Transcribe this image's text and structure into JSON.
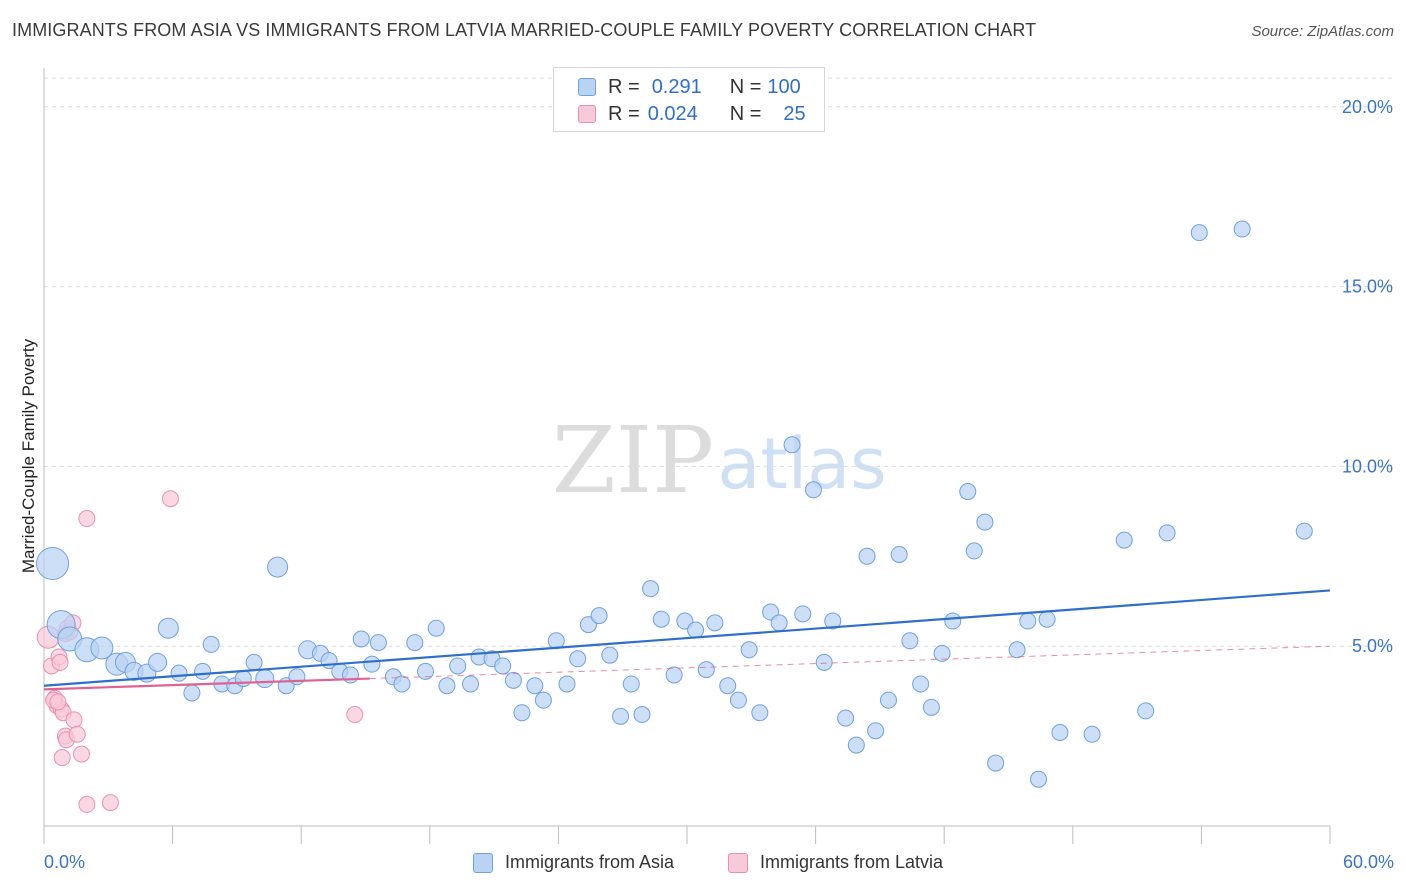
{
  "title": "IMMIGRANTS FROM ASIA VS IMMIGRANTS FROM LATVIA MARRIED-COUPLE FAMILY POVERTY CORRELATION CHART",
  "source": "Source: ZipAtlas.com",
  "watermark": {
    "zip": "ZIP",
    "atlas": "atlas"
  },
  "legend": {
    "rows": [
      {
        "r_label": "R =",
        "r_value": "0.291",
        "n_label": "N =",
        "n_value": "100"
      },
      {
        "r_label": "R =",
        "r_value": "0.024",
        "n_label": "N =",
        "n_value": "25"
      }
    ]
  },
  "x_axis": {
    "min_label": "0.0%",
    "max_label": "60.0%"
  },
  "colors": {
    "asia_fill": "#b9d3f3",
    "asia_stroke": "#6ea1e0",
    "asia_line": "#2f6fcc",
    "latvia_fill": "#f8c9d8",
    "latvia_stroke": "#ea8fb0",
    "latvia_line": "#e0628f",
    "tick_label": "#3a73c9",
    "grid": "#dcdcdc"
  },
  "chart_data": {
    "type": "scatter",
    "title": "IMMIGRANTS FROM ASIA VS IMMIGRANTS FROM LATVIA MARRIED-COUPLE FAMILY POVERTY CORRELATION CHART",
    "xlabel": "",
    "ylabel": "Married-Couple Family Poverty",
    "xlim": [
      0,
      60
    ],
    "ylim": [
      0,
      20.8
    ],
    "y_ticks": [
      5,
      10,
      15,
      20
    ],
    "y_tick_labels": [
      "5.0%",
      "10.0%",
      "15.0%",
      "20.0%"
    ],
    "x_tick_labels": [
      "0.0%",
      "60.0%"
    ],
    "grid": true,
    "legend_position": "top-center",
    "series": [
      {
        "name": "Immigrants from Asia",
        "r": 0.291,
        "n": 100,
        "trend": {
          "x0": 0,
          "y0": 3.9,
          "x1": 60,
          "y1": 6.55
        },
        "points": [
          [
            0.4,
            7.3,
            16
          ],
          [
            0.8,
            5.6,
            14
          ],
          [
            1.2,
            5.2,
            12
          ],
          [
            2.0,
            4.9,
            12
          ],
          [
            2.7,
            4.95,
            11
          ],
          [
            3.4,
            4.5,
            11
          ],
          [
            3.8,
            4.55,
            10
          ],
          [
            4.2,
            4.3,
            9
          ],
          [
            4.8,
            4.25,
            9
          ],
          [
            5.3,
            4.55,
            9
          ],
          [
            5.8,
            5.5,
            10
          ],
          [
            6.3,
            4.25,
            8
          ],
          [
            6.9,
            3.7,
            8
          ],
          [
            7.4,
            4.3,
            8
          ],
          [
            7.8,
            5.05,
            8
          ],
          [
            8.3,
            3.95,
            8
          ],
          [
            8.9,
            3.9,
            8
          ],
          [
            9.3,
            4.1,
            8
          ],
          [
            9.8,
            4.55,
            8
          ],
          [
            10.3,
            4.1,
            9
          ],
          [
            10.9,
            7.2,
            10
          ],
          [
            11.3,
            3.9,
            8
          ],
          [
            11.8,
            4.15,
            8
          ],
          [
            12.3,
            4.9,
            9
          ],
          [
            12.9,
            4.8,
            8
          ],
          [
            13.3,
            4.6,
            8
          ],
          [
            13.8,
            4.3,
            8
          ],
          [
            14.3,
            4.2,
            8
          ],
          [
            14.8,
            5.2,
            8
          ],
          [
            15.3,
            4.5,
            8
          ],
          [
            15.6,
            5.1,
            8
          ],
          [
            16.3,
            4.15,
            8
          ],
          [
            16.7,
            3.95,
            8
          ],
          [
            17.3,
            5.1,
            8
          ],
          [
            17.8,
            4.3,
            8
          ],
          [
            18.3,
            5.5,
            8
          ],
          [
            18.8,
            3.9,
            8
          ],
          [
            19.3,
            4.45,
            8
          ],
          [
            19.9,
            3.95,
            8
          ],
          [
            20.3,
            4.7,
            8
          ],
          [
            20.9,
            4.65,
            8
          ],
          [
            21.4,
            4.45,
            8
          ],
          [
            21.9,
            4.05,
            8
          ],
          [
            22.3,
            3.15,
            8
          ],
          [
            22.9,
            3.9,
            8
          ],
          [
            23.3,
            3.5,
            8
          ],
          [
            23.9,
            5.15,
            8
          ],
          [
            24.4,
            3.95,
            8
          ],
          [
            24.9,
            4.65,
            8
          ],
          [
            25.4,
            5.6,
            8
          ],
          [
            25.9,
            5.85,
            8
          ],
          [
            26.4,
            4.75,
            8
          ],
          [
            26.9,
            3.05,
            8
          ],
          [
            27.4,
            3.95,
            8
          ],
          [
            27.9,
            3.1,
            8
          ],
          [
            28.3,
            6.6,
            8
          ],
          [
            28.8,
            5.75,
            8
          ],
          [
            29.4,
            4.2,
            8
          ],
          [
            29.9,
            5.7,
            8
          ],
          [
            30.4,
            5.45,
            8
          ],
          [
            30.9,
            4.35,
            8
          ],
          [
            31.3,
            5.65,
            8
          ],
          [
            31.9,
            3.9,
            8
          ],
          [
            32.4,
            3.5,
            8
          ],
          [
            32.9,
            4.9,
            8
          ],
          [
            33.4,
            3.15,
            8
          ],
          [
            33.9,
            5.95,
            8
          ],
          [
            34.3,
            5.65,
            8
          ],
          [
            34.9,
            10.6,
            8
          ],
          [
            35.4,
            5.9,
            8
          ],
          [
            35.9,
            9.35,
            8
          ],
          [
            36.4,
            4.55,
            8
          ],
          [
            36.8,
            5.7,
            8
          ],
          [
            37.4,
            3.0,
            8
          ],
          [
            37.9,
            2.25,
            8
          ],
          [
            38.4,
            7.5,
            8
          ],
          [
            38.8,
            2.65,
            8
          ],
          [
            39.4,
            3.5,
            8
          ],
          [
            39.9,
            7.55,
            8
          ],
          [
            40.4,
            5.15,
            8
          ],
          [
            40.9,
            3.95,
            8
          ],
          [
            41.4,
            3.3,
            8
          ],
          [
            41.9,
            4.8,
            8
          ],
          [
            42.4,
            5.7,
            8
          ],
          [
            43.1,
            9.3,
            8
          ],
          [
            43.4,
            7.65,
            8
          ],
          [
            43.9,
            8.45,
            8
          ],
          [
            44.4,
            1.75,
            8
          ],
          [
            45.4,
            4.9,
            8
          ],
          [
            45.9,
            5.7,
            8
          ],
          [
            46.4,
            1.3,
            8
          ],
          [
            46.8,
            5.75,
            8
          ],
          [
            47.4,
            2.6,
            8
          ],
          [
            48.9,
            2.55,
            8
          ],
          [
            50.4,
            7.95,
            8
          ],
          [
            51.4,
            3.2,
            8
          ],
          [
            52.4,
            8.15,
            8
          ],
          [
            53.9,
            16.5,
            8
          ],
          [
            55.9,
            16.6,
            8
          ],
          [
            58.8,
            8.2,
            8
          ]
        ]
      },
      {
        "name": "Immigrants from Latvia",
        "r": 0.024,
        "n": 25,
        "trend": {
          "x0": 0,
          "y0": 3.8,
          "x1": 15.2,
          "y1": 4.1
        },
        "trend_extension": {
          "x0": 15.2,
          "y0": 4.1,
          "x1": 60,
          "y1": 5.0
        },
        "points": [
          [
            0.2,
            5.25,
            11
          ],
          [
            0.35,
            4.45,
            8
          ],
          [
            0.5,
            3.55,
            8
          ],
          [
            0.6,
            3.35,
            8
          ],
          [
            0.7,
            4.7,
            8
          ],
          [
            0.8,
            3.25,
            8
          ],
          [
            0.9,
            3.15,
            8
          ],
          [
            1.0,
            5.35,
            8
          ],
          [
            1.1,
            5.5,
            8
          ],
          [
            1.2,
            5.4,
            8
          ],
          [
            1.35,
            5.65,
            8
          ],
          [
            0.45,
            3.5,
            8
          ],
          [
            0.65,
            3.45,
            8
          ],
          [
            0.85,
            1.9,
            8
          ],
          [
            1.0,
            2.5,
            8
          ],
          [
            1.05,
            2.4,
            8
          ],
          [
            1.4,
            2.95,
            8
          ],
          [
            1.55,
            2.55,
            8
          ],
          [
            1.75,
            2.0,
            8
          ],
          [
            2.0,
            8.55,
            8
          ],
          [
            2.0,
            0.6,
            8
          ],
          [
            3.1,
            0.65,
            8
          ],
          [
            5.9,
            9.1,
            8
          ],
          [
            14.5,
            3.1,
            8
          ],
          [
            0.75,
            4.55,
            8
          ]
        ]
      }
    ]
  }
}
